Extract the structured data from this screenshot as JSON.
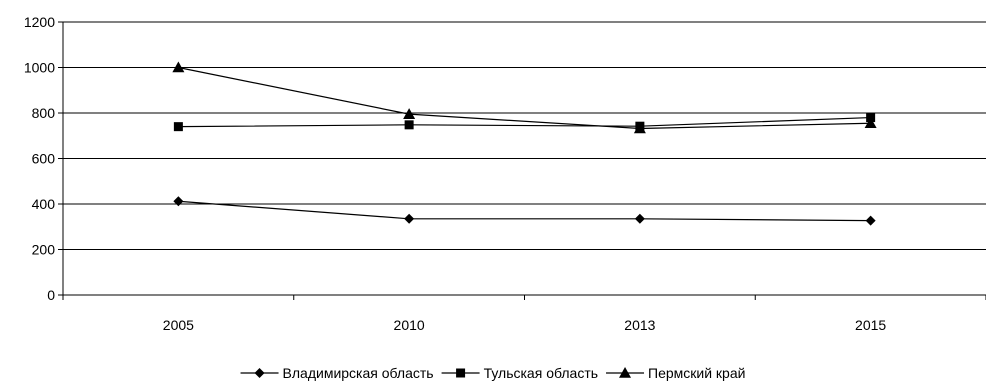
{
  "chart_data": {
    "type": "line",
    "title": "",
    "xlabel": "",
    "ylabel": "",
    "categories": [
      "2005",
      "2010",
      "2013",
      "2015"
    ],
    "ylim": [
      0,
      1200
    ],
    "yticks": [
      0,
      200,
      400,
      600,
      800,
      1000,
      1200
    ],
    "grid": "horizontal",
    "legend_position": "bottom",
    "series": [
      {
        "name": "Владимирская область",
        "marker": "diamond",
        "color": "#000000",
        "values": [
          412,
          335,
          335,
          327
        ]
      },
      {
        "name": "Тульская область",
        "marker": "square",
        "color": "#000000",
        "values": [
          740,
          748,
          742,
          780
        ]
      },
      {
        "name": "Пермский край",
        "marker": "triangle",
        "color": "#000000",
        "values": [
          1000,
          795,
          732,
          755
        ]
      }
    ]
  }
}
